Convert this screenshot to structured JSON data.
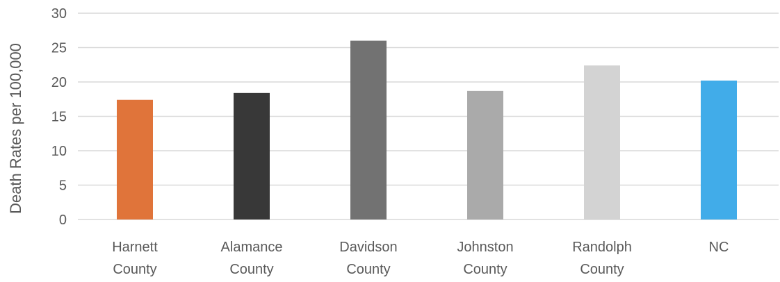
{
  "chart_data": {
    "type": "bar",
    "title": "",
    "xlabel": "",
    "ylabel": "Death Rates per 100,000",
    "ylim": [
      0,
      30
    ],
    "yticks": [
      0,
      5,
      10,
      15,
      20,
      25,
      30
    ],
    "grid": true,
    "legend": "none",
    "categories": [
      [
        "Harnett",
        "County"
      ],
      [
        "Alamance",
        "County"
      ],
      [
        "Davidson",
        "County"
      ],
      [
        "Johnston",
        "County"
      ],
      [
        "Randolph",
        "County"
      ],
      [
        "NC"
      ]
    ],
    "values": [
      17.4,
      18.4,
      26.0,
      18.7,
      22.4,
      20.2
    ],
    "colors": [
      "#e0743a",
      "#383838",
      "#727272",
      "#aaaaaa",
      "#d3d3d3",
      "#41ace9"
    ]
  }
}
